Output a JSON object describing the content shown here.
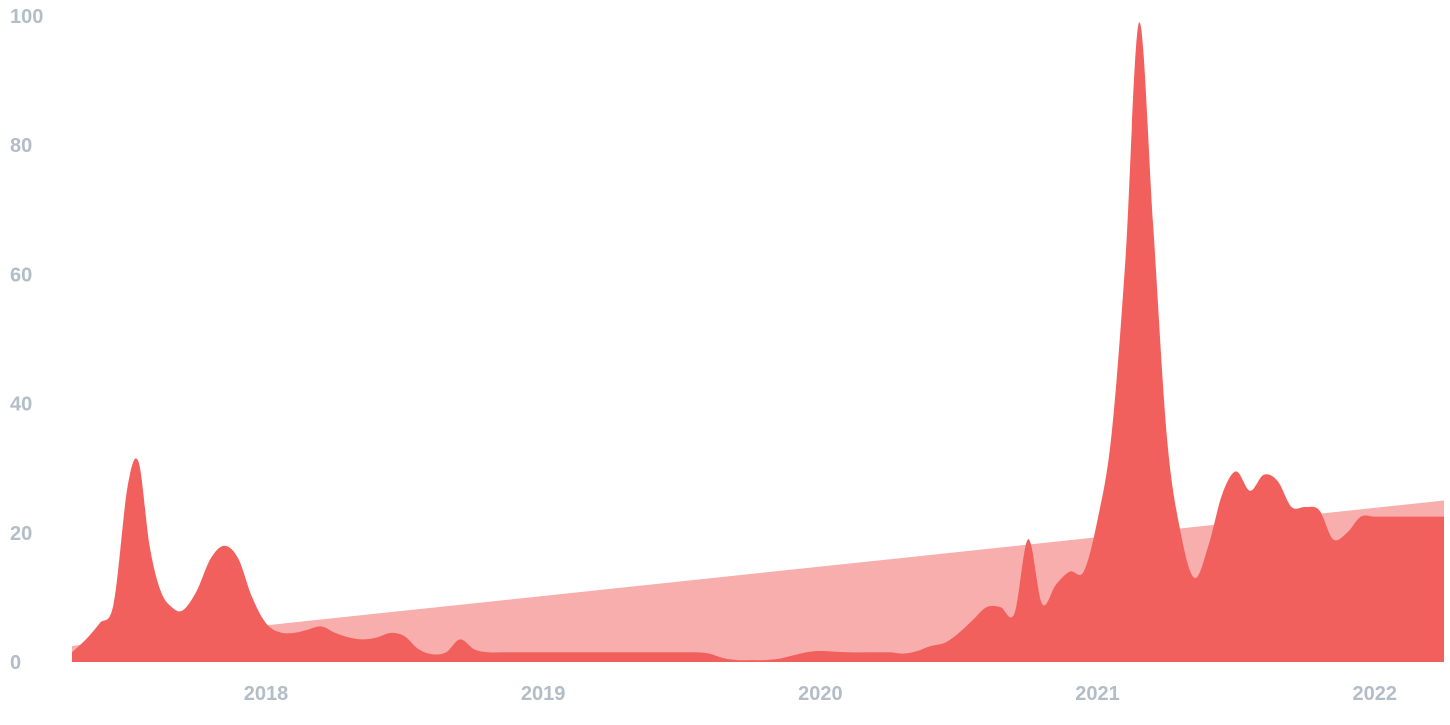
{
  "chart_data": {
    "type": "area",
    "title": "",
    "xlabel": "",
    "ylabel": "",
    "xlim": [
      2017.3,
      2022.25
    ],
    "ylim": [
      0,
      100
    ],
    "grid": false,
    "x_ticks": [
      2018,
      2019,
      2020,
      2021,
      2022
    ],
    "x_tick_labels": [
      "2018",
      "2019",
      "2020",
      "2021",
      "2022"
    ],
    "y_ticks": [
      0,
      20,
      40,
      60,
      80,
      100
    ],
    "y_tick_labels": [
      "0",
      "20",
      "40",
      "60",
      "80",
      "100"
    ],
    "colors": {
      "primary": "#f2605d",
      "trend": "#f7aeac",
      "tick_text": "#b3bdc8"
    },
    "series": [
      {
        "role": "values",
        "x": [
          2017.3,
          2017.35,
          2017.4,
          2017.45,
          2017.5,
          2017.54,
          2017.58,
          2017.62,
          2017.66,
          2017.7,
          2017.75,
          2017.8,
          2017.85,
          2017.9,
          2017.95,
          2018.0,
          2018.05,
          2018.1,
          2018.15,
          2018.2,
          2018.25,
          2018.3,
          2018.35,
          2018.4,
          2018.45,
          2018.5,
          2018.55,
          2018.6,
          2018.65,
          2018.7,
          2018.75,
          2018.8,
          2018.85,
          2018.9,
          2018.95,
          2019.0,
          2019.05,
          2019.1,
          2019.2,
          2019.3,
          2019.4,
          2019.5,
          2019.55,
          2019.6,
          2019.65,
          2019.7,
          2019.75,
          2019.8,
          2019.85,
          2019.9,
          2019.95,
          2020.0,
          2020.1,
          2020.2,
          2020.25,
          2020.3,
          2020.35,
          2020.4,
          2020.45,
          2020.5,
          2020.55,
          2020.6,
          2020.65,
          2020.7,
          2020.75,
          2020.8,
          2020.85,
          2020.9,
          2020.95,
          2021.0,
          2021.05,
          2021.1,
          2021.15,
          2021.2,
          2021.25,
          2021.3,
          2021.35,
          2021.4,
          2021.45,
          2021.5,
          2021.55,
          2021.6,
          2021.65,
          2021.7,
          2021.75,
          2021.8,
          2021.85,
          2021.9,
          2021.95,
          2022.0,
          2022.05,
          2022.1,
          2022.15,
          2022.2,
          2022.25
        ],
        "y": [
          1.5,
          3.5,
          6,
          9,
          27,
          31,
          18,
          11,
          8.5,
          8,
          11,
          16,
          18,
          16,
          10,
          6,
          4.6,
          4.5,
          5,
          5.5,
          4.5,
          3.8,
          3.5,
          3.8,
          4.5,
          4,
          2,
          1.2,
          1.5,
          3.5,
          2,
          1.5,
          1.5,
          1.5,
          1.5,
          1.5,
          1.5,
          1.5,
          1.5,
          1.5,
          1.5,
          1.5,
          1.5,
          1.3,
          0.6,
          0.3,
          0.3,
          0.3,
          0.5,
          1,
          1.5,
          1.7,
          1.5,
          1.5,
          1.5,
          1.3,
          1.7,
          2.5,
          3,
          4.5,
          6.5,
          8.5,
          8.5,
          7.5,
          19,
          9,
          12,
          14,
          14,
          22,
          35,
          62,
          99,
          68,
          35,
          20,
          13,
          18,
          26,
          29.5,
          26.5,
          29,
          28,
          24,
          24,
          23.5,
          19,
          20,
          22.5,
          22.5,
          22.5,
          22.5,
          22.5,
          22.5,
          22.5
        ]
      },
      {
        "role": "trend",
        "x": [
          2017.3,
          2022.25
        ],
        "y": [
          2.5,
          25
        ]
      }
    ]
  }
}
